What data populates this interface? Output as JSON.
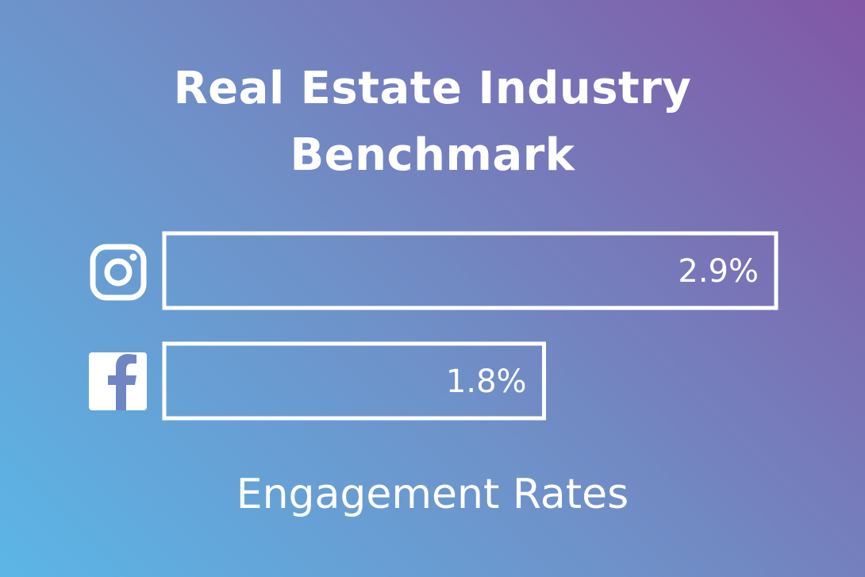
{
  "title_lines": [
    "Real Estate Industry",
    "Benchmark"
  ],
  "caption": "Engagement Rates",
  "colors": {
    "gradient_start": "#5bb6e6",
    "gradient_end": "#8257a5",
    "foreground": "#ffffff"
  },
  "chart_data": {
    "type": "bar",
    "orientation": "horizontal",
    "title": "Real Estate Industry Benchmark",
    "xlabel": "Engagement Rates",
    "categories": [
      "instagram-icon",
      "facebook-icon"
    ],
    "values": [
      2.9,
      1.8
    ],
    "value_labels": [
      "2.9%",
      "1.8%"
    ],
    "unit": "%",
    "xlim": [
      0,
      2.9
    ],
    "grid": false,
    "legend": "none"
  }
}
